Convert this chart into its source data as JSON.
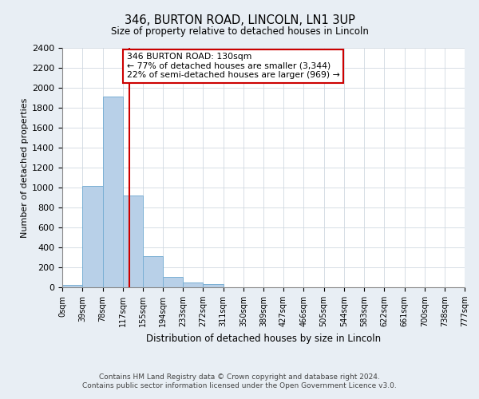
{
  "title": "346, BURTON ROAD, LINCOLN, LN1 3UP",
  "subtitle": "Size of property relative to detached houses in Lincoln",
  "xlabel": "Distribution of detached houses by size in Lincoln",
  "ylabel": "Number of detached properties",
  "bin_edges": [
    0,
    39,
    78,
    117,
    155,
    194,
    233,
    272,
    311,
    350,
    389,
    427,
    466,
    505,
    544,
    583,
    622,
    661,
    700,
    738,
    777
  ],
  "bin_labels": [
    "0sqm",
    "39sqm",
    "78sqm",
    "117sqm",
    "155sqm",
    "194sqm",
    "233sqm",
    "272sqm",
    "311sqm",
    "350sqm",
    "389sqm",
    "427sqm",
    "466sqm",
    "505sqm",
    "544sqm",
    "583sqm",
    "622sqm",
    "661sqm",
    "700sqm",
    "738sqm",
    "777sqm"
  ],
  "counts": [
    25,
    1020,
    1910,
    920,
    315,
    105,
    50,
    30,
    0,
    0,
    0,
    0,
    0,
    0,
    0,
    0,
    0,
    0,
    0,
    0
  ],
  "bar_color": "#b8d0e8",
  "bar_edge_color": "#7aafd4",
  "ylim": [
    0,
    2400
  ],
  "yticks": [
    0,
    200,
    400,
    600,
    800,
    1000,
    1200,
    1400,
    1600,
    1800,
    2000,
    2200,
    2400
  ],
  "property_size": 130,
  "property_line_color": "#cc0000",
  "annotation_title": "346 BURTON ROAD: 130sqm",
  "annotation_line1": "← 77% of detached houses are smaller (3,344)",
  "annotation_line2": "22% of semi-detached houses are larger (969) →",
  "annotation_box_color": "#ffffff",
  "annotation_box_edge_color": "#cc0000",
  "footer_line1": "Contains HM Land Registry data © Crown copyright and database right 2024.",
  "footer_line2": "Contains public sector information licensed under the Open Government Licence v3.0.",
  "background_color": "#e8eef4",
  "plot_background": "#ffffff"
}
